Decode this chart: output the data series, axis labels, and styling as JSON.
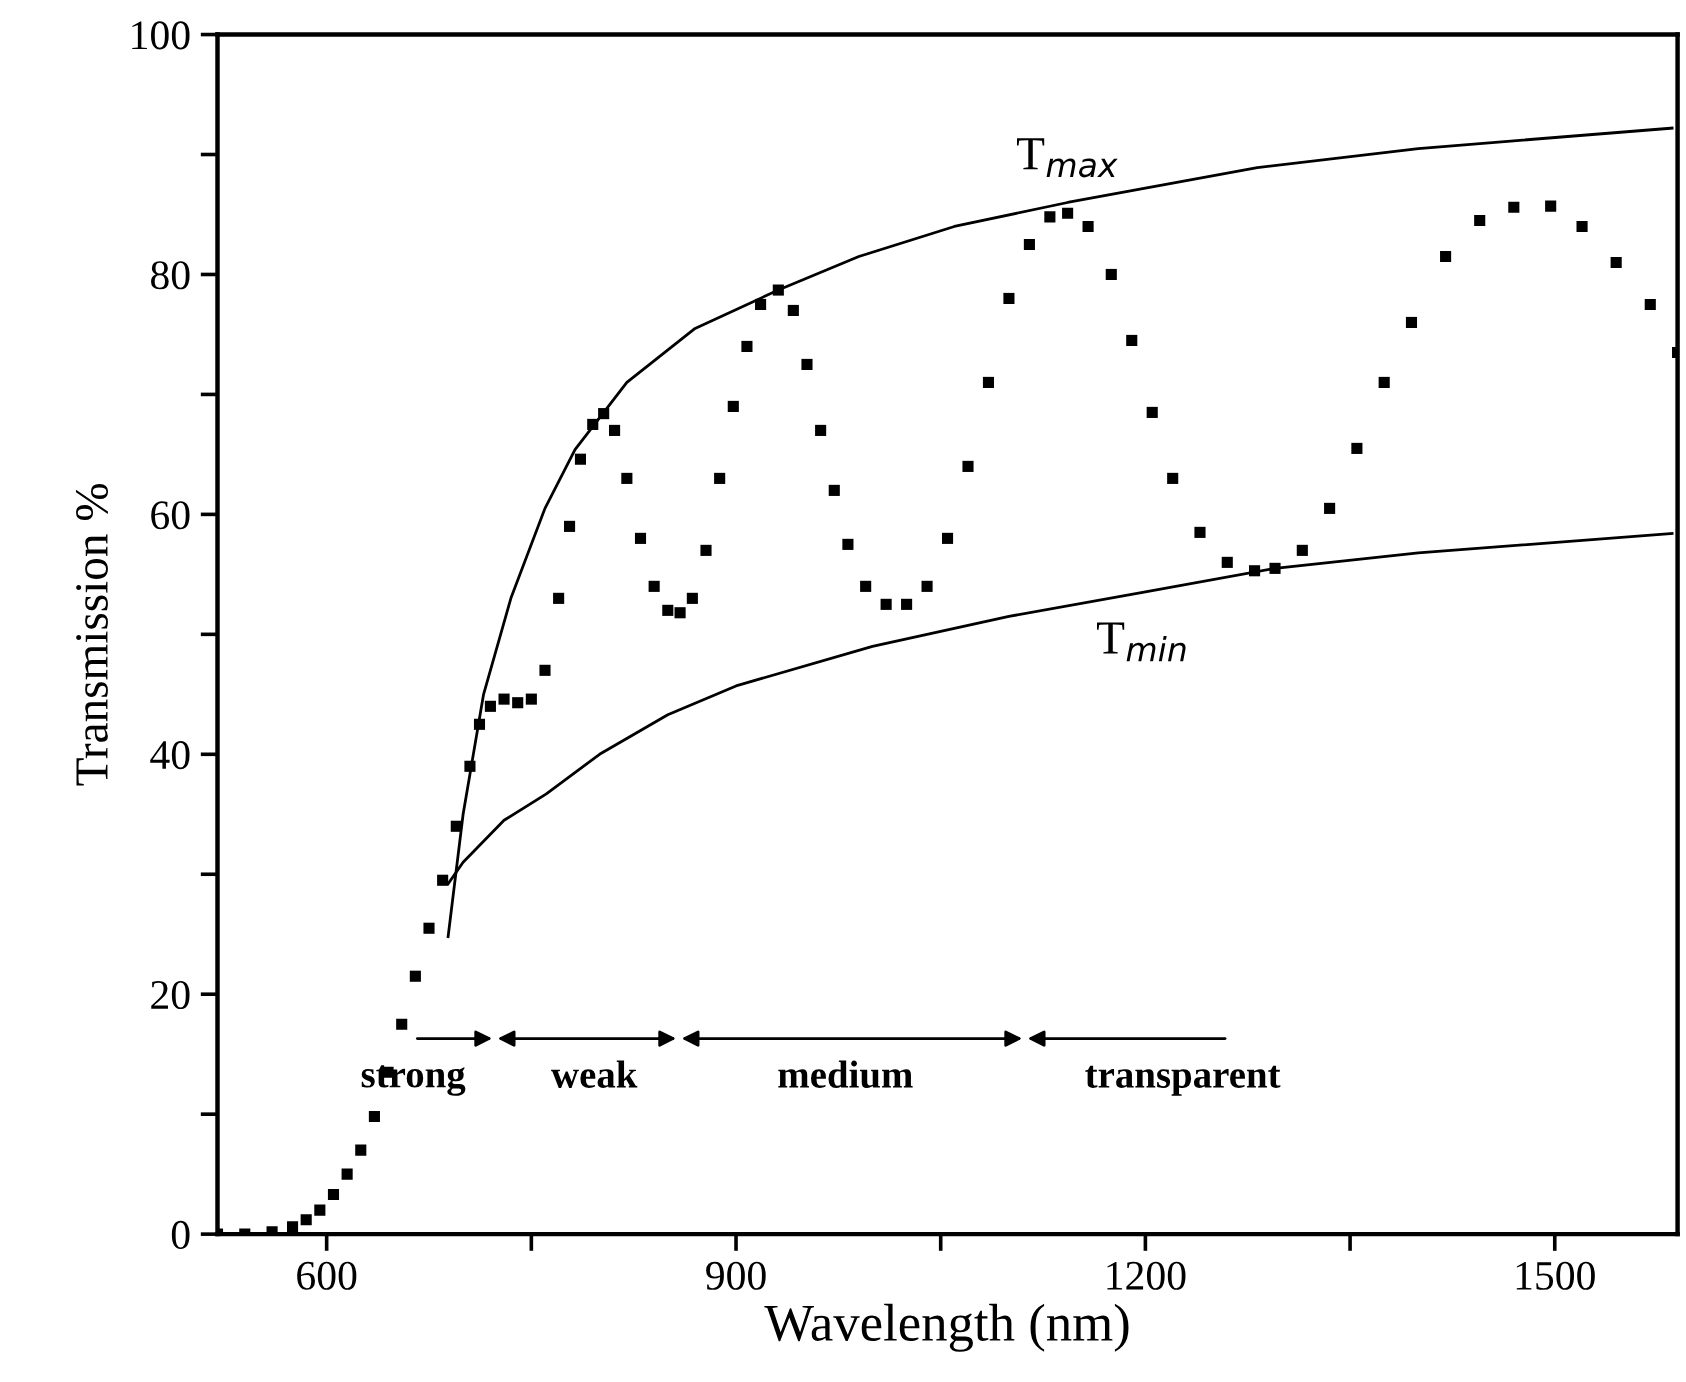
{
  "chart_data": {
    "type": "scatter",
    "xlabel": "Wavelength (nm)",
    "ylabel": "Transmission %",
    "xlim": [
      520,
      1590
    ],
    "ylim": [
      0,
      100
    ],
    "xticks": [
      600,
      {
        "value": 750,
        "label": null
      },
      900,
      {
        "value": 1050,
        "label": null
      },
      1200,
      {
        "value": 1350,
        "label": null
      },
      1500
    ],
    "yticks": [
      0,
      {
        "value": 10,
        "label": null
      },
      20,
      {
        "value": 30,
        "label": null
      },
      40,
      {
        "value": 50,
        "label": null
      },
      60,
      {
        "value": 70,
        "label": null
      },
      80,
      {
        "value": 90,
        "label": null
      },
      100
    ],
    "grid": false,
    "legend": false,
    "series": [
      {
        "marker": "square",
        "color": "#000000",
        "x": [
          520,
          540,
          560,
          575,
          585,
          595,
          605,
          615,
          625,
          635,
          645,
          655,
          665,
          675,
          685,
          695,
          705,
          712,
          720,
          730,
          740,
          750,
          760,
          770,
          778,
          786,
          795,
          803,
          811,
          820,
          830,
          840,
          850,
          859,
          868,
          878,
          888,
          898,
          908,
          918,
          931,
          942,
          952,
          962,
          972,
          982,
          995,
          1010,
          1025,
          1040,
          1055,
          1070,
          1085,
          1100,
          1115,
          1130,
          1143,
          1158,
          1175,
          1190,
          1205,
          1220,
          1240,
          1260,
          1280,
          1295,
          1315,
          1335,
          1355,
          1375,
          1395,
          1420,
          1445,
          1470,
          1497,
          1520,
          1545,
          1570,
          1590
        ],
        "values": [
          0,
          0,
          0.2,
          0.6,
          1.2,
          2,
          3.3,
          5,
          7,
          9.8,
          13.5,
          17.5,
          21.5,
          25.5,
          29.5,
          34,
          39,
          42.5,
          44,
          44.6,
          44.3,
          44.6,
          47,
          53,
          59,
          64.6,
          67.5,
          68.4,
          67,
          63,
          58,
          54,
          52,
          51.8,
          53,
          57,
          63,
          69,
          74,
          77.5,
          78.7,
          77,
          72.5,
          67,
          62,
          57.5,
          54,
          52.5,
          52.5,
          54,
          58,
          64,
          71,
          78,
          82.5,
          84.8,
          85.1,
          84,
          80,
          74.5,
          68.5,
          63,
          58.5,
          56,
          55.3,
          55.5,
          57,
          60.5,
          65.5,
          71,
          76,
          81.5,
          84.5,
          85.6,
          85.7,
          84,
          81,
          77.5,
          73.5
        ]
      },
      {
        "type": "line",
        "name": "T$_{max}$",
        "marker": "none",
        "line_style": "solid",
        "color": "#000000",
        "x": [
          689,
          700,
          715,
          735,
          760,
          782,
          820,
          870,
          931,
          990,
          1060,
          1143,
          1282,
          1400,
          1586
        ],
        "values": [
          24.8,
          35,
          45,
          53,
          60.5,
          65.4,
          71,
          75.5,
          78.7,
          81.5,
          84,
          86,
          88.9,
          90.5,
          92.2
        ]
      },
      {
        "type": "line",
        "name": "T$_{min}$",
        "marker": "none",
        "line_style": "solid",
        "color": "#000000",
        "x": [
          689,
          700,
          730,
          761,
          800,
          850,
          900,
          1000,
          1100,
          1198,
          1295,
          1400,
          1586
        ],
        "values": [
          29.2,
          31,
          34.5,
          36.7,
          40,
          43.3,
          45.7,
          49,
          51.5,
          53.5,
          55.5,
          56.8,
          58.4
        ]
      }
    ],
    "annotations": [
      "strong",
      "weak",
      "medium",
      "transparent"
    ]
  }
}
